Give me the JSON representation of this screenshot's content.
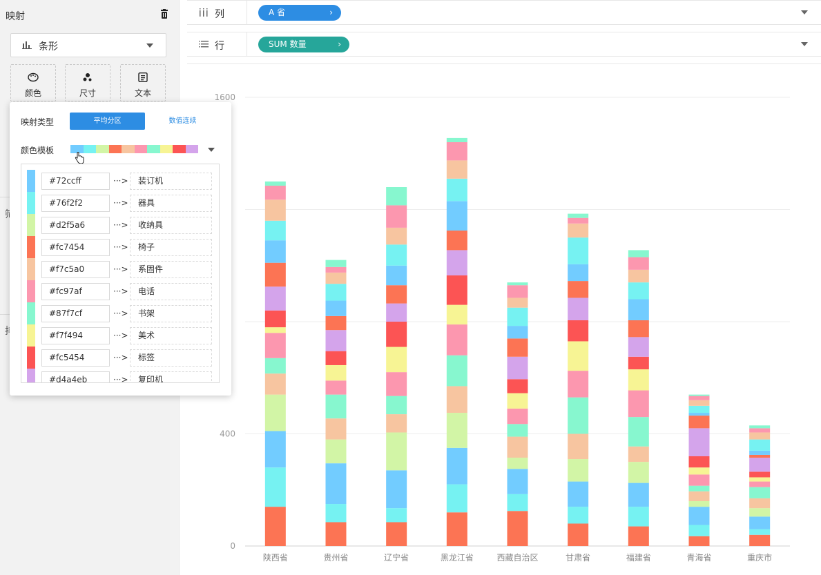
{
  "sidebar": {
    "title": "映射",
    "chart_type": "条形",
    "buttons": [
      {
        "label": "颜色",
        "icon": "palette-icon"
      },
      {
        "label": "尺寸",
        "icon": "size-icon"
      },
      {
        "label": "文本",
        "icon": "text-icon"
      }
    ],
    "frag1": "筛",
    "frag2": "排"
  },
  "shelves": {
    "columns": {
      "label": "列",
      "pill": "A  省",
      "pill_color": "#2d8de3"
    },
    "rows": {
      "label": "行",
      "pill": "SUM  数量",
      "pill_color": "#26a69a"
    }
  },
  "popup": {
    "mapping_type_label": "映射类型",
    "option_even": "平均分区",
    "option_continuous": "数值连续",
    "template_label": "颜色模板",
    "template_colors": [
      "#72ccff",
      "#76f2f2",
      "#d2f5a6",
      "#fc7454",
      "#f7c5a0",
      "#fc97af",
      "#87f7cf",
      "#f7f494",
      "#fc5454",
      "#d4a4eb"
    ],
    "mappings": [
      {
        "color": "#72ccff",
        "hex": "#72ccff",
        "category": "装订机"
      },
      {
        "color": "#76f2f2",
        "hex": "#76f2f2",
        "category": "器具"
      },
      {
        "color": "#d2f5a6",
        "hex": "#d2f5a6",
        "category": "收纳具"
      },
      {
        "color": "#fc7454",
        "hex": "#fc7454",
        "category": "椅子"
      },
      {
        "color": "#f7c5a0",
        "hex": "#f7c5a0",
        "category": "系固件"
      },
      {
        "color": "#fc97af",
        "hex": "#fc97af",
        "category": "电话"
      },
      {
        "color": "#87f7cf",
        "hex": "#87f7cf",
        "category": "书架"
      },
      {
        "color": "#f7f494",
        "hex": "#f7f494",
        "category": "美术"
      },
      {
        "color": "#fc5454",
        "hex": "#fc5454",
        "category": "标签"
      },
      {
        "color": "#d4a4eb",
        "hex": "#d4a4eb",
        "category": "复印机"
      }
    ],
    "arrow_text": "···>"
  },
  "chart_data": {
    "type": "bar",
    "stacked": true,
    "categories": [
      "陕西省",
      "贵州省",
      "辽宁省",
      "黑龙江省",
      "西藏自治区",
      "甘肃省",
      "福建省",
      "青海省",
      "重庆市"
    ],
    "y_ticks": [
      "0",
      "400",
      "",
      "",
      "1600"
    ],
    "ylim": [
      0,
      1600
    ],
    "grid": true,
    "segment_palette": [
      "#fc7454",
      "#76f2f2",
      "#72ccff",
      "#d2f5a6",
      "#f7c5a0",
      "#87f7cf",
      "#fc97af",
      "#f7f494",
      "#fc5454",
      "#d4a4eb",
      "#fc7454",
      "#72ccff",
      "#76f2f2",
      "#f7c5a0",
      "#fc97af",
      "#87f7cf"
    ],
    "stacks": [
      [
        140,
        140,
        130,
        130,
        75,
        55,
        90,
        20,
        60,
        85,
        85,
        80,
        70,
        75,
        50,
        15
      ],
      [
        85,
        65,
        145,
        85,
        75,
        85,
        50,
        55,
        50,
        75,
        50,
        55,
        60,
        40,
        20,
        25
      ],
      [
        85,
        50,
        135,
        135,
        65,
        65,
        85,
        90,
        90,
        65,
        65,
        70,
        75,
        60,
        80,
        65
      ],
      [
        120,
        100,
        130,
        125,
        95,
        110,
        110,
        70,
        105,
        90,
        70,
        105,
        80,
        65,
        65,
        15
      ],
      [
        125,
        60,
        90,
        40,
        75,
        45,
        55,
        55,
        50,
        80,
        65,
        45,
        65,
        35,
        45,
        10
      ],
      [
        80,
        60,
        90,
        80,
        90,
        130,
        95,
        105,
        75,
        80,
        60,
        60,
        95,
        50,
        20,
        15
      ],
      [
        70,
        70,
        85,
        75,
        55,
        105,
        95,
        75,
        45,
        70,
        60,
        75,
        60,
        45,
        45,
        25
      ],
      [
        35,
        40,
        65,
        20,
        35,
        20,
        40,
        25,
        40,
        100,
        45,
        10,
        25,
        20,
        15,
        5
      ],
      [
        40,
        20,
        45,
        30,
        35,
        40,
        20,
        15,
        20,
        50,
        10,
        15,
        40,
        25,
        15,
        10
      ]
    ]
  }
}
